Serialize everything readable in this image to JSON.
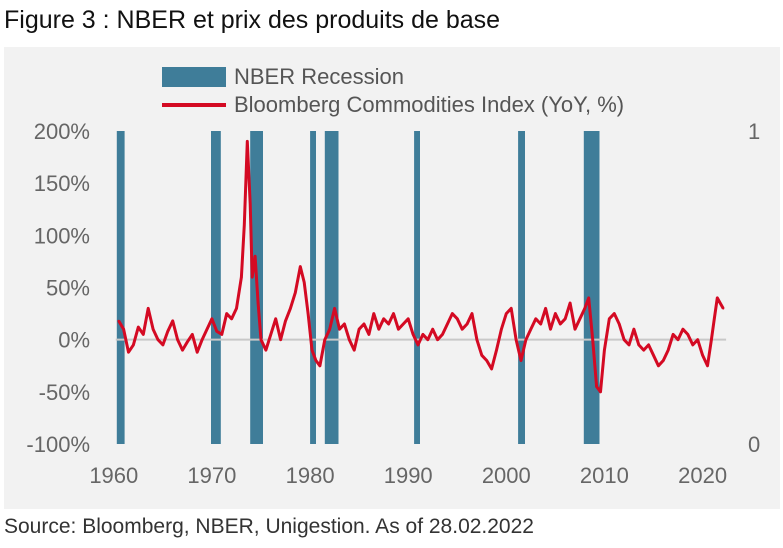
{
  "figure": {
    "title": "Figure 3 : NBER et prix des produits de base",
    "source": "Source: Bloomberg, NBER, Unigestion. As of 28.02.2022"
  },
  "chart_data": {
    "type": "line",
    "legend_position": "top-center",
    "grid": false,
    "legend": {
      "recession_label": "NBER Recession",
      "line_label": "Bloomberg Commodities Index (YoY, %)"
    },
    "colors": {
      "recession": "#3f7d99",
      "line": "#d40a23",
      "zero_line": "#c8c8c8"
    },
    "x_axis": {
      "range": [
        1959,
        2023
      ],
      "ticks": [
        1960,
        1970,
        1980,
        1990,
        2000,
        2010,
        2020
      ],
      "tick_labels": [
        "1960",
        "1970",
        "1980",
        "1990",
        "2000",
        "2010",
        "2020"
      ]
    },
    "y_axis_left": {
      "range": [
        -100,
        200
      ],
      "ticks": [
        -100,
        -50,
        0,
        50,
        100,
        150,
        200
      ],
      "tick_labels": [
        "-100%",
        "-50%",
        "0%",
        "50%",
        "100%",
        "150%",
        "200%"
      ]
    },
    "y_axis_right": {
      "range": [
        0,
        1
      ],
      "ticks": [
        0,
        1
      ],
      "tick_labels": [
        "0",
        "1"
      ]
    },
    "recessions": [
      [
        1960.3,
        1961.1
      ],
      [
        1969.9,
        1970.9
      ],
      [
        1973.9,
        1975.2
      ],
      [
        1980.0,
        1980.6
      ],
      [
        1981.5,
        1982.9
      ],
      [
        1990.6,
        1991.2
      ],
      [
        2001.2,
        2001.9
      ],
      [
        2007.9,
        2009.5
      ]
    ],
    "series": [
      {
        "name": "Bloomberg Commodities Index (YoY, %)",
        "x": [
          1960.5,
          1961,
          1961.5,
          1962,
          1962.5,
          1963,
          1963.5,
          1964,
          1964.5,
          1965,
          1965.5,
          1966,
          1966.5,
          1967,
          1967.5,
          1968,
          1968.5,
          1969,
          1969.5,
          1970,
          1970.5,
          1971,
          1971.5,
          1972,
          1972.5,
          1973,
          1973.3,
          1973.6,
          1973.9,
          1974.1,
          1974.4,
          1974.7,
          1975,
          1975.5,
          1976,
          1976.5,
          1977,
          1977.5,
          1978,
          1978.5,
          1979,
          1979.4,
          1979.8,
          1980.2,
          1980.6,
          1981,
          1981.5,
          1982,
          1982.5,
          1983,
          1983.5,
          1984,
          1984.5,
          1985,
          1985.5,
          1986,
          1986.5,
          1987,
          1987.5,
          1988,
          1988.5,
          1989,
          1989.5,
          1990,
          1990.5,
          1991,
          1991.5,
          1992,
          1992.5,
          1993,
          1993.5,
          1994,
          1994.5,
          1995,
          1995.5,
          1996,
          1996.5,
          1997,
          1997.5,
          1998,
          1998.5,
          1999,
          1999.5,
          2000,
          2000.5,
          2001,
          2001.5,
          2002,
          2002.5,
          2003,
          2003.5,
          2004,
          2004.5,
          2005,
          2005.5,
          2006,
          2006.5,
          2007,
          2007.5,
          2008,
          2008.4,
          2008.8,
          2009.2,
          2009.6,
          2010,
          2010.5,
          2011,
          2011.5,
          2012,
          2012.5,
          2013,
          2013.5,
          2014,
          2014.5,
          2015,
          2015.5,
          2016,
          2016.5,
          2017,
          2017.5,
          2018,
          2018.5,
          2019,
          2019.5,
          2020,
          2020.5,
          2020.9,
          2021.2,
          2021.5,
          2021.8,
          2022.1
        ],
        "values": [
          18,
          10,
          -12,
          -5,
          12,
          5,
          30,
          10,
          0,
          -5,
          8,
          18,
          0,
          -10,
          -2,
          5,
          -12,
          0,
          10,
          20,
          8,
          5,
          25,
          20,
          30,
          60,
          110,
          190,
          130,
          60,
          80,
          35,
          0,
          -10,
          5,
          20,
          0,
          18,
          30,
          45,
          70,
          55,
          25,
          -10,
          -20,
          -25,
          0,
          10,
          30,
          10,
          15,
          0,
          -10,
          10,
          15,
          5,
          25,
          10,
          20,
          15,
          25,
          10,
          15,
          20,
          5,
          -5,
          5,
          0,
          10,
          0,
          5,
          15,
          25,
          20,
          10,
          15,
          25,
          0,
          -15,
          -20,
          -28,
          -10,
          10,
          25,
          30,
          0,
          -20,
          0,
          10,
          20,
          15,
          30,
          10,
          25,
          15,
          20,
          35,
          10,
          20,
          30,
          40,
          0,
          -45,
          -50,
          -10,
          20,
          25,
          15,
          0,
          -5,
          10,
          -5,
          -10,
          -5,
          -15,
          -25,
          -20,
          -10,
          5,
          0,
          10,
          5,
          -5,
          0,
          -15,
          -25,
          0,
          20,
          40,
          35,
          30
        ]
      }
    ]
  }
}
